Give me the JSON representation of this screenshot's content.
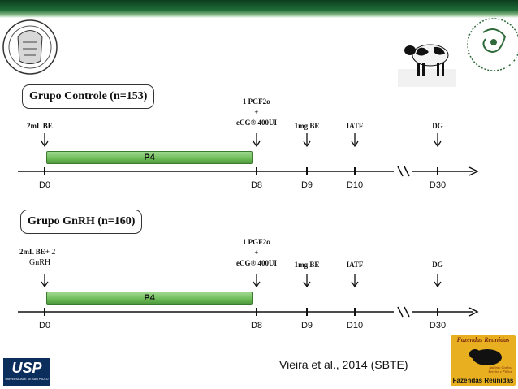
{
  "group1": {
    "title": "Grupo Controle (n=153)",
    "labels": {
      "be": "2mL BE",
      "pgf_line1": "1 PGF2α",
      "pgf_plus": "+",
      "pgf_line2": "eCG® 400UI",
      "be1mg": "1mg BE",
      "iatf": "IATF",
      "dg": "DG"
    },
    "bar_label": "P4",
    "days": [
      "D0",
      "D8",
      "D9",
      "D10",
      "D30"
    ]
  },
  "group2": {
    "title": "Grupo GnRH (n=160)",
    "labels": {
      "be_line1_bold": "2mL BE+",
      "be_line1_normal": " 2",
      "be_line2": "GnRH",
      "pgf_line1": "1 PGF2α",
      "pgf_plus": "+",
      "pgf_line2": "eCG® 400UI",
      "be1mg": "1mg BE",
      "iatf": "IATF",
      "dg": "DG"
    },
    "bar_label": "P4",
    "days": [
      "D0",
      "D8",
      "D9",
      "D10",
      "D30"
    ]
  },
  "citation": "Vieira et al., 2014 (SBTE)",
  "logos": {
    "usp": "USP",
    "usp_sub": "UNIVERSIDADE DE SÃO PAULO",
    "fazendas_top": "Fazendas Reunidas",
    "fazendas_mid": "Antônio Carlos Pereira e Filhos",
    "fazendas_bottom": "Fazendas Reunidas"
  },
  "colors": {
    "header": "#1f6a36",
    "bar": "#6dbb58",
    "logo_usp": "#0b2e5c",
    "logo_fazendas": "#e8b020"
  }
}
